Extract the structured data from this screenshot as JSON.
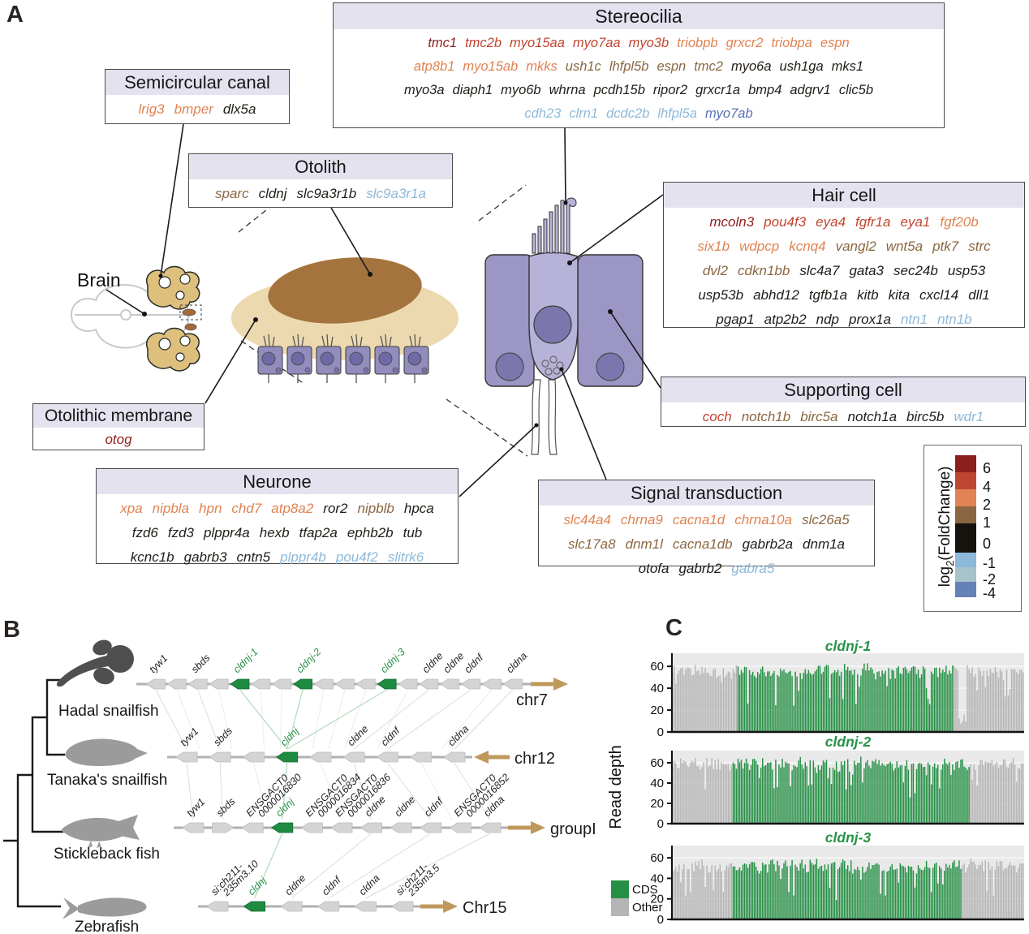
{
  "palette": {
    "darkred": "#8e1f1c",
    "red": "#c2452f",
    "orange": "#e08352",
    "brown": "#8a6742",
    "black": "#211d18",
    "lightblue": "#8db9d8",
    "blue": "#5571b3",
    "green": "#1e8b41",
    "green_text": "#279347",
    "chrom": "#bf985c",
    "gray_arrow": "#d4d4d4",
    "track": "#b0b0b0"
  },
  "panelA": {
    "label": "A",
    "brain_label": "Brain",
    "boxes": {
      "stereocilia": {
        "title": "Stereocilia",
        "rows": [
          [
            {
              "t": "tmc1",
              "c": "darkred"
            },
            {
              "t": "tmc2b",
              "c": "red"
            },
            {
              "t": "myo15aa",
              "c": "red"
            },
            {
              "t": "myo7aa",
              "c": "red"
            },
            {
              "t": "myo3b",
              "c": "red"
            },
            {
              "t": "triobpb",
              "c": "orange"
            },
            {
              "t": "grxcr2",
              "c": "orange"
            },
            {
              "t": "triobpa",
              "c": "orange"
            },
            {
              "t": "espn",
              "c": "orange"
            }
          ],
          [
            {
              "t": "atp8b1",
              "c": "orange"
            },
            {
              "t": "myo15ab",
              "c": "orange"
            },
            {
              "t": "mkks",
              "c": "orange"
            },
            {
              "t": "ush1c",
              "c": "brown"
            },
            {
              "t": "lhfpl5b",
              "c": "brown"
            },
            {
              "t": "espn",
              "c": "brown"
            },
            {
              "t": "tmc2",
              "c": "brown"
            },
            {
              "t": "myo6a",
              "c": "black"
            },
            {
              "t": "ush1ga",
              "c": "black"
            },
            {
              "t": "mks1",
              "c": "black"
            }
          ],
          [
            {
              "t": "myo3a",
              "c": "black"
            },
            {
              "t": "diaph1",
              "c": "black"
            },
            {
              "t": "myo6b",
              "c": "black"
            },
            {
              "t": "whrna",
              "c": "black"
            },
            {
              "t": "pcdh15b",
              "c": "black"
            },
            {
              "t": "ripor2",
              "c": "black"
            },
            {
              "t": "grxcr1a",
              "c": "black"
            },
            {
              "t": "bmp4",
              "c": "black"
            },
            {
              "t": "adgrv1",
              "c": "black"
            },
            {
              "t": "clic5b",
              "c": "black"
            }
          ],
          [
            {
              "t": "cdh23",
              "c": "lightblue"
            },
            {
              "t": "clrn1",
              "c": "lightblue"
            },
            {
              "t": "dcdc2b",
              "c": "lightblue"
            },
            {
              "t": "lhfpl5a",
              "c": "lightblue"
            },
            {
              "t": "myo7ab",
              "c": "blue"
            }
          ]
        ]
      },
      "semicircular_canal": {
        "title": "Semicircular canal",
        "rows": [
          [
            {
              "t": "lrig3",
              "c": "orange"
            },
            {
              "t": "bmper",
              "c": "orange"
            },
            {
              "t": "dlx5a",
              "c": "black"
            }
          ]
        ]
      },
      "otolith": {
        "title": "Otolith",
        "rows": [
          [
            {
              "t": "sparc",
              "c": "brown"
            },
            {
              "t": "cldnj",
              "c": "black"
            },
            {
              "t": "slc9a3r1b",
              "c": "black"
            },
            {
              "t": "slc9a3r1a",
              "c": "lightblue"
            }
          ]
        ]
      },
      "hair_cell": {
        "title": "Hair cell",
        "rows": [
          [
            {
              "t": "mcoln3",
              "c": "darkred"
            },
            {
              "t": "pou4f3",
              "c": "red"
            },
            {
              "t": "eya4",
              "c": "red"
            },
            {
              "t": "fgfr1a",
              "c": "red"
            },
            {
              "t": "eya1",
              "c": "red"
            },
            {
              "t": "fgf20b",
              "c": "orange"
            }
          ],
          [
            {
              "t": "six1b",
              "c": "orange"
            },
            {
              "t": "wdpcp",
              "c": "orange"
            },
            {
              "t": "kcnq4",
              "c": "orange"
            },
            {
              "t": "vangl2",
              "c": "brown"
            },
            {
              "t": "wnt5a",
              "c": "brown"
            },
            {
              "t": "ptk7",
              "c": "brown"
            },
            {
              "t": "strc",
              "c": "brown"
            }
          ],
          [
            {
              "t": "dvl2",
              "c": "brown"
            },
            {
              "t": "cdkn1bb",
              "c": "brown"
            },
            {
              "t": "slc4a7",
              "c": "black"
            },
            {
              "t": "gata3",
              "c": "black"
            },
            {
              "t": "sec24b",
              "c": "black"
            },
            {
              "t": "usp53",
              "c": "black"
            }
          ],
          [
            {
              "t": "usp53b",
              "c": "black"
            },
            {
              "t": "abhd12",
              "c": "black"
            },
            {
              "t": "tgfb1a",
              "c": "black"
            },
            {
              "t": "kitb",
              "c": "black"
            },
            {
              "t": "kita",
              "c": "black"
            },
            {
              "t": "cxcl14",
              "c": "black"
            },
            {
              "t": "dll1",
              "c": "black"
            }
          ],
          [
            {
              "t": "pgap1",
              "c": "black"
            },
            {
              "t": "atp2b2",
              "c": "black"
            },
            {
              "t": "ndp",
              "c": "black"
            },
            {
              "t": "prox1a",
              "c": "black"
            },
            {
              "t": "ntn1",
              "c": "lightblue"
            },
            {
              "t": "ntn1b",
              "c": "lightblue"
            }
          ]
        ]
      },
      "supporting_cell": {
        "title": "Supporting cell",
        "rows": [
          [
            {
              "t": "coch",
              "c": "red"
            },
            {
              "t": "notch1b",
              "c": "brown"
            },
            {
              "t": "birc5a",
              "c": "brown"
            },
            {
              "t": "notch1a",
              "c": "black"
            },
            {
              "t": "birc5b",
              "c": "black"
            },
            {
              "t": "wdr1",
              "c": "lightblue"
            }
          ]
        ]
      },
      "otolithic_membrane": {
        "title": "Otolithic membrane",
        "rows": [
          [
            {
              "t": "otog",
              "c": "darkred"
            }
          ]
        ]
      },
      "neurone": {
        "title": "Neurone",
        "rows": [
          [
            {
              "t": "xpa",
              "c": "orange"
            },
            {
              "t": "nipbla",
              "c": "orange"
            },
            {
              "t": "hpn",
              "c": "orange"
            },
            {
              "t": "chd7",
              "c": "orange"
            },
            {
              "t": "atp8a2",
              "c": "orange"
            },
            {
              "t": "ror2",
              "c": "black"
            },
            {
              "t": "nipblb",
              "c": "brown"
            },
            {
              "t": "hpca",
              "c": "black"
            }
          ],
          [
            {
              "t": "fzd6",
              "c": "black"
            },
            {
              "t": "fzd3",
              "c": "black"
            },
            {
              "t": "plppr4a",
              "c": "black"
            },
            {
              "t": "hexb",
              "c": "black"
            },
            {
              "t": "tfap2a",
              "c": "black"
            },
            {
              "t": "ephb2b",
              "c": "black"
            },
            {
              "t": "tub",
              "c": "black"
            }
          ],
          [
            {
              "t": "kcnc1b",
              "c": "black"
            },
            {
              "t": "gabrb3",
              "c": "black"
            },
            {
              "t": "cntn5",
              "c": "black"
            },
            {
              "t": "plppr4b",
              "c": "lightblue"
            },
            {
              "t": "pou4f2",
              "c": "lightblue"
            },
            {
              "t": "slitrk6",
              "c": "lightblue"
            }
          ]
        ]
      },
      "signal_transduction": {
        "title": "Signal transduction",
        "rows": [
          [
            {
              "t": "slc44a4",
              "c": "orange"
            },
            {
              "t": "chrna9",
              "c": "orange"
            },
            {
              "t": "cacna1d",
              "c": "orange"
            },
            {
              "t": "chrna10a",
              "c": "orange"
            },
            {
              "t": "slc26a5",
              "c": "brown"
            }
          ],
          [
            {
              "t": "slc17a8",
              "c": "brown"
            },
            {
              "t": "dnm1l",
              "c": "brown"
            },
            {
              "t": "cacna1db",
              "c": "brown"
            },
            {
              "t": "gabrb2a",
              "c": "black"
            },
            {
              "t": "dnm1a",
              "c": "black"
            }
          ],
          [
            {
              "t": "otofa",
              "c": "black"
            },
            {
              "t": "gabrb2",
              "c": "black"
            },
            {
              "t": "gabra5",
              "c": "lightblue"
            }
          ]
        ]
      }
    },
    "colorbar": {
      "label_pre": "log",
      "label_sub": "2",
      "label_post": "(FoldChange)",
      "ticks": [
        "6",
        "4",
        "2",
        "1",
        "0",
        "-1",
        "-2",
        "-4"
      ],
      "colors": [
        "#8c1f1d",
        "#bf4533",
        "#e08355",
        "#8a6742",
        "#16120d",
        "#8cb9da",
        "#a6c2cb",
        "#6581b5"
      ]
    }
  },
  "panelB": {
    "label": "B",
    "species": [
      {
        "name": "Hadal snailfish",
        "chrom": {
          "label": "chr7",
          "dir": "right"
        },
        "genes": [
          {
            "label": "tyw1"
          },
          {},
          {
            "label": "sbds"
          },
          {},
          {
            "label": "cldnj-1",
            "green": true
          },
          {},
          {},
          {
            "label": "cldnj-2",
            "green": true
          },
          {},
          {},
          {},
          {
            "label": "cldnj-3",
            "green": true
          },
          {},
          {
            "label": "cldne"
          },
          {
            "label": "cldne"
          },
          {
            "label": "cldnf"
          },
          {},
          {
            "label": "cldna"
          }
        ]
      },
      {
        "name": "Tanaka's snailfish",
        "chrom": {
          "label": "chr12",
          "dir": "left"
        },
        "genes": [
          {
            "label": "tyw1"
          },
          {
            "label": "sbds"
          },
          {},
          {
            "label": "cldnj",
            "green": true
          },
          {},
          {
            "label": "cldne"
          },
          {
            "label": "cldnf"
          },
          {},
          {
            "label": "cldna"
          }
        ]
      },
      {
        "name": "Stickleback fish",
        "chrom": {
          "label": "groupI",
          "dir": "right"
        },
        "genes": [
          {
            "label": "tyw1"
          },
          {
            "label": "sbds",
            "dir": "right"
          },
          {
            "label": "ENSGACT0|0000016830"
          },
          {
            "label": "cldnj",
            "green": true
          },
          {
            "label": "ENSGACT0|0000016834"
          },
          {
            "label": "ENSGACT0|0000016836"
          },
          {
            "label": "cldne"
          },
          {
            "label": "cldne"
          },
          {
            "label": "cldnf"
          },
          {
            "label": "ENSGACT0|0000016852"
          },
          {
            "label": "cldna"
          }
        ]
      },
      {
        "name": "Zebrafish",
        "chrom": {
          "label": "Chr15",
          "dir": "right"
        },
        "genes": [
          {
            "label": "si:ch211-|235m3.10"
          },
          {
            "label": "cldnj",
            "green": true
          },
          {
            "label": "cldne"
          },
          {
            "label": "cldnf"
          },
          {
            "label": "cldna"
          },
          {
            "label": "si:ch211-|235m3.5"
          }
        ]
      }
    ]
  },
  "panelC": {
    "label": "C",
    "ylabel": "Read depth",
    "legend": [
      {
        "label": "CDS",
        "key": "cds"
      },
      {
        "label": "Other",
        "key": "other"
      }
    ],
    "colors": {
      "cds": "#259045",
      "other": "#b5b5b5",
      "bg": "#e9e9e9"
    }
  },
  "chart_data": [
    {
      "type": "bar",
      "title": "cldnj-1",
      "ylabel": "Read depth",
      "ylim": [
        0,
        72
      ],
      "yticks": [
        0,
        20,
        40,
        60
      ],
      "n_bars": 215,
      "mean_depth": 59,
      "noise_amplitude": 9,
      "regions": [
        {
          "from": 0.0,
          "to": 0.185,
          "class": "Other"
        },
        {
          "from": 0.185,
          "to": 0.8,
          "class": "CDS"
        },
        {
          "from": 0.8,
          "to": 1.0,
          "class": "Other"
        }
      ],
      "dips": [
        {
          "at": 0.825,
          "width": 0.012,
          "depth": 6
        }
      ]
    },
    {
      "type": "bar",
      "title": "cldnj-2",
      "ylabel": "Read depth",
      "ylim": [
        0,
        72
      ],
      "yticks": [
        0,
        20,
        40,
        60
      ],
      "n_bars": 215,
      "mean_depth": 62,
      "noise_amplitude": 9,
      "regions": [
        {
          "from": 0.0,
          "to": 0.17,
          "class": "Other"
        },
        {
          "from": 0.17,
          "to": 0.845,
          "class": "CDS"
        },
        {
          "from": 0.845,
          "to": 1.0,
          "class": "Other"
        }
      ],
      "dips": []
    },
    {
      "type": "bar",
      "title": "cldnj-3",
      "ylabel": "Read depth",
      "ylim": [
        0,
        72
      ],
      "yticks": [
        0,
        20,
        40,
        60
      ],
      "n_bars": 215,
      "mean_depth": 55,
      "noise_amplitude": 10,
      "regions": [
        {
          "from": 0.0,
          "to": 0.17,
          "class": "Other"
        },
        {
          "from": 0.17,
          "to": 0.82,
          "class": "CDS"
        },
        {
          "from": 0.82,
          "to": 1.0,
          "class": "Other"
        }
      ],
      "dips": []
    }
  ]
}
